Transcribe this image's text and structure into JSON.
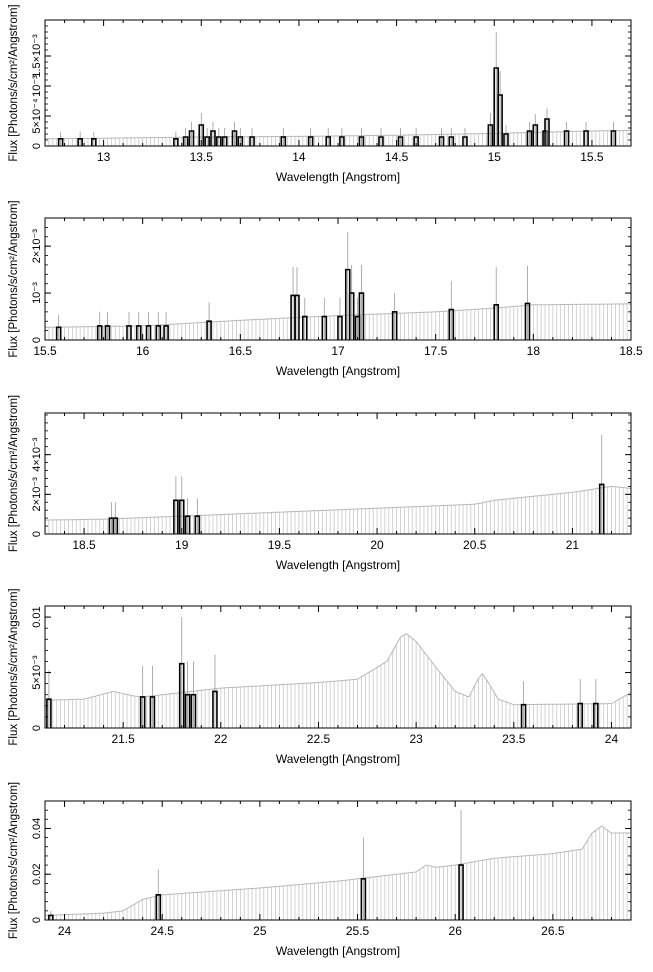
{
  "chart_data": [
    {
      "type": "bar",
      "xlabel": "Wavelength [Angstrom]",
      "ylabel": "Flux [Photons/s/cm²/Angstrom]",
      "xlim": [
        12.7,
        15.7
      ],
      "ylim": [
        0,
        0.0021
      ],
      "x_ticks": [
        {
          "value": 13,
          "label": "13"
        },
        {
          "value": 13.5,
          "label": "13.5"
        },
        {
          "value": 14,
          "label": "14"
        },
        {
          "value": 14.5,
          "label": "14.5"
        },
        {
          "value": 15,
          "label": "15"
        },
        {
          "value": 15.5,
          "label": "15.5"
        }
      ],
      "y_ticks": [
        {
          "value": 0,
          "label": "0"
        },
        {
          "value": 0.0005,
          "label": "5×10⁻⁴"
        },
        {
          "value": 0.001,
          "label": "10⁻³"
        },
        {
          "value": 0.0015,
          "label": "1.5×10⁻³"
        }
      ],
      "model": {
        "color": "#c8c8c8",
        "x": [
          12.7,
          13.0,
          13.5,
          14.0,
          14.5,
          15.0,
          15.5,
          15.7
        ],
        "y": [
          0.00012,
          0.00013,
          0.00015,
          0.00016,
          0.00018,
          0.00021,
          0.00025,
          0.00026
        ]
      },
      "data_points": [
        {
          "x": 12.78,
          "y": 0.00012,
          "err": 0.00012
        },
        {
          "x": 12.88,
          "y": 0.00012,
          "err": 0.00012
        },
        {
          "x": 12.95,
          "y": 0.00012,
          "err": 0.00012
        },
        {
          "x": 13.37,
          "y": 0.00012,
          "err": 0.00012
        },
        {
          "x": 13.42,
          "y": 0.00015,
          "err": 0.00015
        },
        {
          "x": 13.45,
          "y": 0.00025,
          "err": 0.00015
        },
        {
          "x": 13.5,
          "y": 0.00035,
          "err": 0.0002
        },
        {
          "x": 13.53,
          "y": 0.00015,
          "err": 0.00015
        },
        {
          "x": 13.56,
          "y": 0.00025,
          "err": 0.00015
        },
        {
          "x": 13.59,
          "y": 0.00015,
          "err": 0.00015
        },
        {
          "x": 13.62,
          "y": 0.00015,
          "err": 0.00015
        },
        {
          "x": 13.67,
          "y": 0.00025,
          "err": 0.00015
        },
        {
          "x": 13.7,
          "y": 0.00015,
          "err": 0.00015
        },
        {
          "x": 13.76,
          "y": 0.00015,
          "err": 0.00015
        },
        {
          "x": 13.92,
          "y": 0.00015,
          "err": 0.00015
        },
        {
          "x": 14.06,
          "y": 0.00015,
          "err": 0.00015
        },
        {
          "x": 14.15,
          "y": 0.00015,
          "err": 0.00015
        },
        {
          "x": 14.22,
          "y": 0.00015,
          "err": 0.00015
        },
        {
          "x": 14.32,
          "y": 0.00015,
          "err": 0.00015
        },
        {
          "x": 14.42,
          "y": 0.00015,
          "err": 0.00015
        },
        {
          "x": 14.52,
          "y": 0.00015,
          "err": 0.00015
        },
        {
          "x": 14.6,
          "y": 0.00015,
          "err": 0.00015
        },
        {
          "x": 14.73,
          "y": 0.00015,
          "err": 0.00015
        },
        {
          "x": 14.78,
          "y": 0.00015,
          "err": 0.00015
        },
        {
          "x": 14.85,
          "y": 0.00015,
          "err": 0.00015
        },
        {
          "x": 14.98,
          "y": 0.00035,
          "err": 0.0002
        },
        {
          "x": 15.01,
          "y": 0.0013,
          "err": 0.0006
        },
        {
          "x": 15.03,
          "y": 0.00085,
          "err": 0.0004
        },
        {
          "x": 15.06,
          "y": 0.0002,
          "err": 0.00015
        },
        {
          "x": 15.18,
          "y": 0.00025,
          "err": 0.00015
        },
        {
          "x": 15.21,
          "y": 0.00035,
          "err": 0.00018
        },
        {
          "x": 15.26,
          "y": 0.00025,
          "err": 0.00015
        },
        {
          "x": 15.27,
          "y": 0.00045,
          "err": 0.00018
        },
        {
          "x": 15.37,
          "y": 0.00025,
          "err": 0.00015
        },
        {
          "x": 15.47,
          "y": 0.00025,
          "err": 0.00015
        },
        {
          "x": 15.61,
          "y": 0.00025,
          "err": 0.00015
        }
      ]
    },
    {
      "type": "bar",
      "xlabel": "Wavelength [Angstrom]",
      "ylabel": "Flux [Photons/s/cm²/Angstrom]",
      "xlim": [
        15.5,
        18.5
      ],
      "ylim": [
        0,
        0.0026
      ],
      "x_ticks": [
        {
          "value": 15.5,
          "label": "15.5"
        },
        {
          "value": 16,
          "label": "16"
        },
        {
          "value": 16.5,
          "label": "16.5"
        },
        {
          "value": 17,
          "label": "17"
        },
        {
          "value": 17.5,
          "label": "17.5"
        },
        {
          "value": 18,
          "label": "18"
        },
        {
          "value": 18.5,
          "label": "18.5"
        }
      ],
      "y_ticks": [
        {
          "value": 0,
          "label": "0"
        },
        {
          "value": 0.001,
          "label": "10⁻³"
        },
        {
          "value": 0.002,
          "label": "2×10⁻³"
        }
      ],
      "model": {
        "color": "#c8c8c8",
        "x": [
          15.5,
          16.0,
          16.5,
          16.8,
          17.0,
          17.5,
          17.8,
          18.0,
          18.5
        ],
        "y": [
          0.00027,
          0.0003,
          0.00042,
          0.00048,
          0.00052,
          0.0006,
          0.00068,
          0.00075,
          0.00077
        ]
      },
      "data_points": [
        {
          "x": 15.57,
          "y": 0.00027,
          "err": 0.00027
        },
        {
          "x": 15.78,
          "y": 0.0003,
          "err": 0.0003
        },
        {
          "x": 15.82,
          "y": 0.0003,
          "err": 0.0003
        },
        {
          "x": 15.93,
          "y": 0.0003,
          "err": 0.0003
        },
        {
          "x": 15.98,
          "y": 0.0003,
          "err": 0.0003
        },
        {
          "x": 16.03,
          "y": 0.0003,
          "err": 0.0003
        },
        {
          "x": 16.08,
          "y": 0.0003,
          "err": 0.0003
        },
        {
          "x": 16.12,
          "y": 0.0003,
          "err": 0.0003
        },
        {
          "x": 16.34,
          "y": 0.0004,
          "err": 0.0004
        },
        {
          "x": 16.77,
          "y": 0.00095,
          "err": 0.0006
        },
        {
          "x": 16.79,
          "y": 0.00095,
          "err": 0.0006
        },
        {
          "x": 16.83,
          "y": 0.0005,
          "err": 0.0004
        },
        {
          "x": 16.93,
          "y": 0.0005,
          "err": 0.0004
        },
        {
          "x": 17.01,
          "y": 0.0005,
          "err": 0.0004
        },
        {
          "x": 17.05,
          "y": 0.0015,
          "err": 0.0008
        },
        {
          "x": 17.07,
          "y": 0.001,
          "err": 0.0006
        },
        {
          "x": 17.1,
          "y": 0.0005,
          "err": 0.0004
        },
        {
          "x": 17.12,
          "y": 0.001,
          "err": 0.0006
        },
        {
          "x": 17.29,
          "y": 0.0006,
          "err": 0.0004
        },
        {
          "x": 17.58,
          "y": 0.00065,
          "err": 0.0006
        },
        {
          "x": 17.81,
          "y": 0.00075,
          "err": 0.0008
        },
        {
          "x": 17.97,
          "y": 0.00078,
          "err": 0.0008
        }
      ]
    },
    {
      "type": "bar",
      "xlabel": "Wavelength [Angstrom]",
      "ylabel": "Flux [Photons/s/cm²/Angstrom]",
      "xlim": [
        18.3,
        21.3
      ],
      "ylim": [
        0,
        0.0061
      ],
      "x_ticks": [
        {
          "value": 18.5,
          "label": "18.5"
        },
        {
          "value": 19,
          "label": "19"
        },
        {
          "value": 19.5,
          "label": "19.5"
        },
        {
          "value": 20,
          "label": "20"
        },
        {
          "value": 20.5,
          "label": "20.5"
        },
        {
          "value": 21,
          "label": "21"
        }
      ],
      "y_ticks": [
        {
          "value": 0,
          "label": "0"
        },
        {
          "value": 0.002,
          "label": "2×10⁻³"
        },
        {
          "value": 0.004,
          "label": "4×10⁻³"
        }
      ],
      "model": {
        "color": "#c8c8c8",
        "x": [
          18.3,
          18.6,
          19.0,
          19.5,
          20.0,
          20.5,
          20.6,
          21.0,
          21.2,
          21.3
        ],
        "y": [
          0.0007,
          0.00075,
          0.0009,
          0.0011,
          0.0013,
          0.0015,
          0.0017,
          0.0021,
          0.0024,
          0.0023
        ]
      },
      "data_points": [
        {
          "x": 18.64,
          "y": 0.0008,
          "err": 0.0008
        },
        {
          "x": 18.66,
          "y": 0.0008,
          "err": 0.0008
        },
        {
          "x": 18.97,
          "y": 0.0017,
          "err": 0.0012
        },
        {
          "x": 19.0,
          "y": 0.0017,
          "err": 0.0012
        },
        {
          "x": 19.03,
          "y": 0.0009,
          "err": 0.0009
        },
        {
          "x": 19.08,
          "y": 0.0009,
          "err": 0.0009
        },
        {
          "x": 21.15,
          "y": 0.0025,
          "err": 0.0025
        }
      ]
    },
    {
      "type": "bar",
      "xlabel": "Wavelength [Angstrom]",
      "ylabel": "Flux [Photons/s/cm²/Angstrom]",
      "xlim": [
        21.1,
        24.1
      ],
      "ylim": [
        0,
        0.011
      ],
      "x_ticks": [
        {
          "value": 21.5,
          "label": "21.5"
        },
        {
          "value": 22,
          "label": "22"
        },
        {
          "value": 22.5,
          "label": "22.5"
        },
        {
          "value": 23,
          "label": "23"
        },
        {
          "value": 23.5,
          "label": "23.5"
        },
        {
          "value": 24,
          "label": "24"
        }
      ],
      "y_ticks": [
        {
          "value": 0,
          "label": "0"
        },
        {
          "value": 0.005,
          "label": "5×10⁻³"
        },
        {
          "value": 0.01,
          "label": "0.01"
        }
      ],
      "model": {
        "color": "#c8c8c8",
        "x": [
          21.1,
          21.3,
          21.45,
          21.55,
          21.6,
          22.0,
          22.5,
          22.7,
          22.85,
          22.92,
          22.95,
          23.0,
          23.1,
          23.2,
          23.27,
          23.32,
          23.34,
          23.38,
          23.42,
          23.5,
          24.0,
          24.1
        ],
        "y": [
          0.0025,
          0.0026,
          0.0033,
          0.0029,
          0.0028,
          0.0036,
          0.0041,
          0.0044,
          0.006,
          0.0082,
          0.0085,
          0.0078,
          0.0055,
          0.0033,
          0.0028,
          0.0045,
          0.0049,
          0.0038,
          0.0026,
          0.0021,
          0.0022,
          0.0032
        ]
      },
      "data_points": [
        {
          "x": 21.12,
          "y": 0.0026,
          "err": 0.0026
        },
        {
          "x": 21.6,
          "y": 0.0028,
          "err": 0.0028
        },
        {
          "x": 21.65,
          "y": 0.0028,
          "err": 0.0028
        },
        {
          "x": 21.8,
          "y": 0.0058,
          "err": 0.0042
        },
        {
          "x": 21.83,
          "y": 0.003,
          "err": 0.003
        },
        {
          "x": 21.86,
          "y": 0.003,
          "err": 0.003
        },
        {
          "x": 21.97,
          "y": 0.0033,
          "err": 0.0033
        },
        {
          "x": 23.55,
          "y": 0.0021,
          "err": 0.0021
        },
        {
          "x": 23.84,
          "y": 0.0022,
          "err": 0.0022
        },
        {
          "x": 23.92,
          "y": 0.0022,
          "err": 0.0022
        }
      ]
    },
    {
      "type": "bar",
      "xlabel": "Wavelength [Angstrom]",
      "ylabel": "Flux [Photons/s/cm²/Angstrom]",
      "xlim": [
        23.9,
        26.9
      ],
      "ylim": [
        0,
        0.052
      ],
      "x_ticks": [
        {
          "value": 24,
          "label": "24"
        },
        {
          "value": 24.5,
          "label": "24.5"
        },
        {
          "value": 25,
          "label": "25"
        },
        {
          "value": 25.5,
          "label": "25.5"
        },
        {
          "value": 26,
          "label": "26"
        },
        {
          "value": 26.5,
          "label": "26.5"
        }
      ],
      "y_ticks": [
        {
          "value": 0,
          "label": "0"
        },
        {
          "value": 0.02,
          "label": "0.02"
        },
        {
          "value": 0.04,
          "label": "0.04"
        }
      ],
      "model": {
        "color": "#c8c8c8",
        "x": [
          23.9,
          24.2,
          24.3,
          24.4,
          24.5,
          25.0,
          25.4,
          25.5,
          25.8,
          25.85,
          25.9,
          26.0,
          26.2,
          26.5,
          26.65,
          26.7,
          26.75,
          26.8,
          26.9
        ],
        "y": [
          0.002,
          0.003,
          0.004,
          0.009,
          0.011,
          0.014,
          0.017,
          0.018,
          0.021,
          0.024,
          0.023,
          0.024,
          0.027,
          0.029,
          0.031,
          0.038,
          0.041,
          0.038,
          0.038
        ]
      },
      "data_points": [
        {
          "x": 23.93,
          "y": 0.002,
          "err": 0.002
        },
        {
          "x": 24.48,
          "y": 0.011,
          "err": 0.011
        },
        {
          "x": 25.53,
          "y": 0.018,
          "err": 0.018
        },
        {
          "x": 26.03,
          "y": 0.024,
          "err": 0.024
        }
      ]
    }
  ]
}
